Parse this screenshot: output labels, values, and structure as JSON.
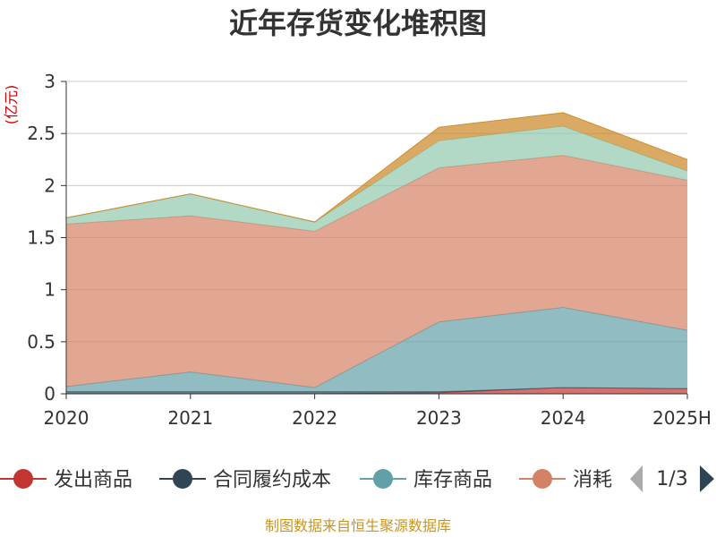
{
  "title": "近年存货变化堆积图",
  "unit": "(亿元)",
  "source": "制图数据来自恒生聚源数据库",
  "legend_pager": "1/3",
  "chart_data": {
    "type": "area",
    "stacked": true,
    "title": "近年存货变化堆积图",
    "ylabel": "(亿元)",
    "xlabel": "",
    "x": [
      "2020",
      "2021",
      "2022",
      "2023",
      "2024",
      "2025H"
    ],
    "ylim": [
      0,
      3
    ],
    "yticks": [
      0,
      0.5,
      1,
      1.5,
      2,
      2.5,
      3
    ],
    "ytick_labels": [
      "0",
      "0.5",
      "1",
      "1.5",
      "2",
      "2.5",
      "3"
    ],
    "grid": true,
    "legend_position": "bottom",
    "series": [
      {
        "name": "发出商品",
        "color": "#c23531",
        "values": [
          0.0,
          0.0,
          0.0,
          0.01,
          0.06,
          0.05
        ],
        "legend_visible": true
      },
      {
        "name": "合同履约成本",
        "color": "#2f4554",
        "values": [
          0.02,
          0.02,
          0.02,
          0.01,
          0.0,
          0.0
        ],
        "legend_visible": true
      },
      {
        "name": "库存商品",
        "color": "#61a0a8",
        "values": [
          0.05,
          0.19,
          0.04,
          0.67,
          0.77,
          0.56
        ],
        "legend_visible": true
      },
      {
        "name": "消耗",
        "color": "#d48265",
        "values": [
          1.56,
          1.5,
          1.5,
          1.48,
          1.46,
          1.44
        ],
        "legend_visible": true
      },
      {
        "name": "",
        "color": "#91c7ae",
        "values": [
          0.06,
          0.21,
          0.09,
          0.26,
          0.28,
          0.09
        ],
        "legend_visible": false
      },
      {
        "name": "",
        "color": "#ca8622",
        "values": [
          0.0,
          0.0,
          0.0,
          0.13,
          0.13,
          0.11
        ],
        "legend_visible": false
      }
    ]
  },
  "legend": [
    {
      "label": "发出商品",
      "color": "#c23531"
    },
    {
      "label": "合同履约成本",
      "color": "#2f4554"
    },
    {
      "label": "库存商品",
      "color": "#61a0a8"
    },
    {
      "label": "消耗",
      "color": "#d48265"
    }
  ]
}
